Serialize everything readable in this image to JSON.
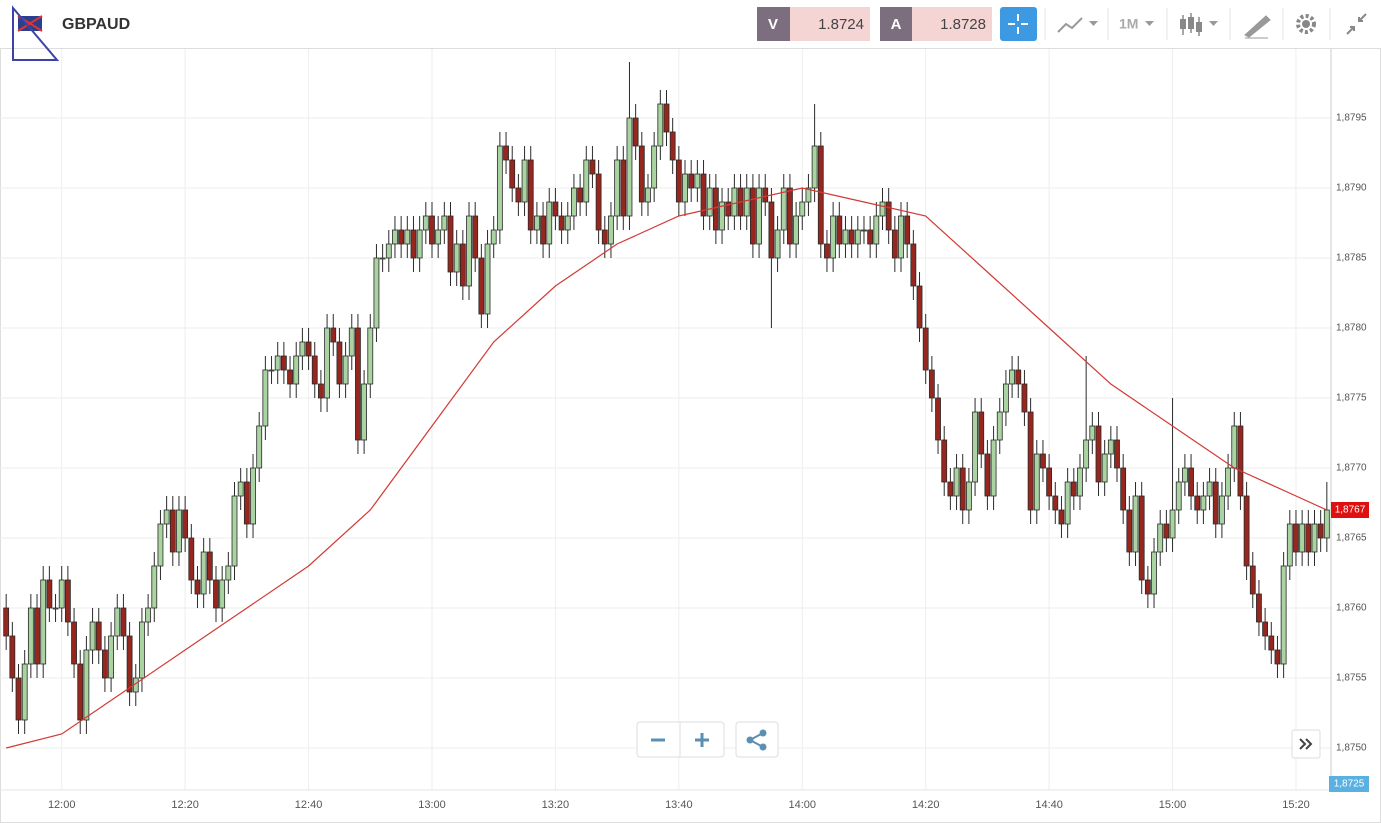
{
  "chart_data": {
    "type": "candlestick",
    "title": "GBPAUD",
    "interval": "1M",
    "bid": {
      "letter": "V",
      "price": "1.8724"
    },
    "ask": {
      "letter": "A",
      "price": "1.8728"
    },
    "up_color": "#a9d3a0",
    "down_color": "#96271f",
    "grid": true,
    "ylim": [
      1.8747,
      1.88
    ],
    "yticks": [
      {
        "value": 1.875,
        "label": "1,8750"
      },
      {
        "value": 1.8755,
        "label": "1,8755"
      },
      {
        "value": 1.876,
        "label": "1,8760"
      },
      {
        "value": 1.8765,
        "label": "1,8765"
      },
      {
        "value": 1.877,
        "label": "1,8770"
      },
      {
        "value": 1.8775,
        "label": "1,8775"
      },
      {
        "value": 1.878,
        "label": "1,8780"
      },
      {
        "value": 1.8785,
        "label": "1,8785"
      },
      {
        "value": 1.879,
        "label": "1,8790"
      },
      {
        "value": 1.8795,
        "label": "1,8795"
      }
    ],
    "xlim": [
      "11:50",
      "15:26"
    ],
    "xticks": [
      "12:00",
      "12:20",
      "12:40",
      "13:00",
      "13:20",
      "13:40",
      "14:00",
      "14:20",
      "14:40",
      "15:00",
      "15:20"
    ],
    "last_price": {
      "value": 1.8767,
      "label": "1,8767"
    },
    "cursor_price": "1,8725",
    "x": [
      "11:51",
      "11:52",
      "11:53",
      "11:54",
      "11:55",
      "11:56",
      "11:57",
      "11:58",
      "11:59",
      "12:00",
      "12:01",
      "12:02",
      "12:03",
      "12:04",
      "12:05",
      "12:06",
      "12:07",
      "12:08",
      "12:09",
      "12:10",
      "12:11",
      "12:12",
      "12:13",
      "12:14",
      "12:15",
      "12:16",
      "12:17",
      "12:18",
      "12:19",
      "12:20",
      "12:21",
      "12:22",
      "12:23",
      "12:24",
      "12:25",
      "12:26",
      "12:27",
      "12:28",
      "12:29",
      "12:30",
      "12:31",
      "12:32",
      "12:33",
      "12:34",
      "12:35",
      "12:36",
      "12:37",
      "12:38",
      "12:39",
      "12:40",
      "12:41",
      "12:42",
      "12:43",
      "12:44",
      "12:45",
      "12:46",
      "12:47",
      "12:48",
      "12:49",
      "12:50",
      "12:51",
      "12:52",
      "12:53",
      "12:54",
      "12:55",
      "12:56",
      "12:57",
      "12:58",
      "12:59",
      "13:00",
      "13:01",
      "13:02",
      "13:03",
      "13:04",
      "13:05",
      "13:06",
      "13:07",
      "13:08",
      "13:09",
      "13:10",
      "13:11",
      "13:12",
      "13:13",
      "13:14",
      "13:15",
      "13:16",
      "13:17",
      "13:18",
      "13:19",
      "13:20",
      "13:21",
      "13:22",
      "13:23",
      "13:24",
      "13:25",
      "13:26",
      "13:27",
      "13:28",
      "13:29",
      "13:30",
      "13:31",
      "13:32",
      "13:33",
      "13:34",
      "13:35",
      "13:36",
      "13:37",
      "13:38",
      "13:39",
      "13:40",
      "13:41",
      "13:42",
      "13:43",
      "13:44",
      "13:45",
      "13:46",
      "13:47",
      "13:48",
      "13:49",
      "13:50",
      "13:51",
      "13:52",
      "13:53",
      "13:54",
      "13:55",
      "13:56",
      "13:57",
      "13:58",
      "13:59",
      "14:00",
      "14:01",
      "14:02",
      "14:03",
      "14:04",
      "14:05",
      "14:06",
      "14:07",
      "14:08",
      "14:09",
      "14:10",
      "14:11",
      "14:12",
      "14:13",
      "14:14",
      "14:15",
      "14:16",
      "14:17",
      "14:18",
      "14:19",
      "14:20",
      "14:21",
      "14:22",
      "14:23",
      "14:24",
      "14:25",
      "14:26",
      "14:27",
      "14:28",
      "14:29",
      "14:30",
      "14:31",
      "14:32",
      "14:33",
      "14:34",
      "14:35",
      "14:36",
      "14:37",
      "14:38",
      "14:39",
      "14:40",
      "14:41",
      "14:42",
      "14:43",
      "14:44",
      "14:45",
      "14:46",
      "14:47",
      "14:48",
      "14:49",
      "14:50",
      "14:51",
      "14:52",
      "14:53",
      "14:54",
      "14:55",
      "14:56",
      "14:57",
      "14:58",
      "14:59",
      "15:00",
      "15:01",
      "15:02",
      "15:03",
      "15:04",
      "15:05",
      "15:06",
      "15:07",
      "15:08",
      "15:09",
      "15:10",
      "15:11",
      "15:12",
      "15:13",
      "15:14",
      "15:15",
      "15:16",
      "15:17",
      "15:18",
      "15:19",
      "15:20",
      "15:21",
      "15:22",
      "15:23",
      "15:24",
      "15:25"
    ],
    "open": [
      1.876,
      1.8758,
      1.8755,
      1.8752,
      1.8756,
      1.876,
      1.8756,
      1.8762,
      1.876,
      1.876,
      1.8762,
      1.8759,
      1.8756,
      1.8752,
      1.8757,
      1.8759,
      1.8757,
      1.8755,
      1.8758,
      1.876,
      1.8758,
      1.8754,
      1.8755,
      1.8759,
      1.876,
      1.8763,
      1.8766,
      1.8767,
      1.8764,
      1.8767,
      1.8765,
      1.8762,
      1.8761,
      1.8764,
      1.8762,
      1.876,
      1.8762,
      1.8763,
      1.8768,
      1.8769,
      1.8766,
      1.877,
      1.8773,
      1.8777,
      1.8777,
      1.8778,
      1.8777,
      1.8776,
      1.8778,
      1.8779,
      1.8778,
      1.8776,
      1.8775,
      1.878,
      1.8779,
      1.8776,
      1.8778,
      1.878,
      1.8772,
      1.8776,
      1.878,
      1.8785,
      1.8785,
      1.8786,
      1.8787,
      1.8786,
      1.8787,
      1.8785,
      1.8787,
      1.8788,
      1.8786,
      1.8787,
      1.8788,
      1.8784,
      1.8786,
      1.8783,
      1.8788,
      1.8785,
      1.8781,
      1.8786,
      1.8787,
      1.8793,
      1.8792,
      1.879,
      1.8789,
      1.8792,
      1.8787,
      1.8788,
      1.8786,
      1.8789,
      1.8788,
      1.8787,
      1.8788,
      1.879,
      1.8789,
      1.8792,
      1.8791,
      1.8787,
      1.8786,
      1.8788,
      1.8792,
      1.8788,
      1.8795,
      1.8793,
      1.8789,
      1.879,
      1.8793,
      1.8796,
      1.8794,
      1.8792,
      1.8789,
      1.8791,
      1.879,
      1.8791,
      1.8788,
      1.879,
      1.8787,
      1.8789,
      1.8788,
      1.879,
      1.8788,
      1.879,
      1.8786,
      1.879,
      1.8789,
      1.8785,
      1.8787,
      1.879,
      1.8786,
      1.8788,
      1.8789,
      1.879,
      1.8793,
      1.8786,
      1.8785,
      1.8788,
      1.8786,
      1.8787,
      1.8786,
      1.8787,
      1.8787,
      1.8786,
      1.8788,
      1.8789,
      1.8787,
      1.8785,
      1.8788,
      1.8786,
      1.8783,
      1.878,
      1.8777,
      1.8775,
      1.8772,
      1.8769,
      1.8768,
      1.877,
      1.8767,
      1.8769,
      1.8774,
      1.8771,
      1.8768,
      1.8772,
      1.8774,
      1.8776,
      1.8777,
      1.8776,
      1.8774,
      1.8767,
      1.8771,
      1.877,
      1.8768,
      1.8767,
      1.8766,
      1.8769,
      1.8768,
      1.877,
      1.8772,
      1.8773,
      1.8769,
      1.8771,
      1.8772,
      1.877,
      1.8767,
      1.8764,
      1.8768,
      1.8762,
      1.8761,
      1.8764,
      1.8766,
      1.8765,
      1.8767,
      1.8769,
      1.877,
      1.8768,
      1.8767,
      1.8768,
      1.8769,
      1.8766,
      1.8768,
      1.877,
      1.8773,
      1.8768,
      1.8763,
      1.8761,
      1.8759,
      1.8758,
      1.8757,
      1.8756,
      1.8763,
      1.8766,
      1.8764,
      1.8766,
      1.8764,
      1.8766,
      1.8765
    ],
    "high": [
      1.8761,
      1.8759,
      1.8756,
      1.8757,
      1.8761,
      1.8761,
      1.8763,
      1.8763,
      1.8761,
      1.8763,
      1.8763,
      1.876,
      1.8757,
      1.8758,
      1.876,
      1.876,
      1.8758,
      1.8759,
      1.8761,
      1.8761,
      1.8759,
      1.8756,
      1.876,
      1.8761,
      1.8764,
      1.8767,
      1.8768,
      1.8768,
      1.8768,
      1.8768,
      1.8766,
      1.8763,
      1.8765,
      1.8765,
      1.8763,
      1.8763,
      1.8764,
      1.8769,
      1.877,
      1.877,
      1.8771,
      1.8774,
      1.8778,
      1.8778,
      1.8779,
      1.8779,
      1.8778,
      1.8779,
      1.878,
      1.878,
      1.8779,
      1.8777,
      1.8781,
      1.8781,
      1.878,
      1.8779,
      1.8781,
      1.8781,
      1.8777,
      1.8781,
      1.8786,
      1.8786,
      1.8787,
      1.8788,
      1.8788,
      1.8788,
      1.8788,
      1.8788,
      1.8789,
      1.8789,
      1.8788,
      1.8789,
      1.8789,
      1.8787,
      1.8787,
      1.8789,
      1.8789,
      1.8786,
      1.8787,
      1.8788,
      1.8794,
      1.8794,
      1.8793,
      1.8791,
      1.8793,
      1.8793,
      1.8789,
      1.8789,
      1.879,
      1.879,
      1.8789,
      1.8789,
      1.8791,
      1.8791,
      1.8793,
      1.8793,
      1.8792,
      1.8788,
      1.8789,
      1.8793,
      1.8793,
      1.8799,
      1.8796,
      1.8794,
      1.8791,
      1.8794,
      1.8797,
      1.8797,
      1.8795,
      1.8793,
      1.8792,
      1.8792,
      1.8792,
      1.8792,
      1.8791,
      1.8791,
      1.879,
      1.879,
      1.8791,
      1.8791,
      1.8791,
      1.8791,
      1.8791,
      1.8791,
      1.879,
      1.8788,
      1.8791,
      1.8791,
      1.8789,
      1.879,
      1.8791,
      1.8796,
      1.8794,
      1.8787,
      1.8789,
      1.8789,
      1.8788,
      1.8788,
      1.8788,
      1.8788,
      1.8788,
      1.8789,
      1.879,
      1.879,
      1.8788,
      1.8789,
      1.8789,
      1.8787,
      1.8784,
      1.8781,
      1.8778,
      1.8776,
      1.8773,
      1.877,
      1.8771,
      1.8771,
      1.877,
      1.8775,
      1.8775,
      1.8772,
      1.8773,
      1.8775,
      1.8777,
      1.8778,
      1.8778,
      1.8777,
      1.8775,
      1.8772,
      1.8772,
      1.8771,
      1.8769,
      1.8768,
      1.877,
      1.877,
      1.8771,
      1.8778,
      1.8774,
      1.8774,
      1.8772,
      1.8773,
      1.8773,
      1.8771,
      1.8768,
      1.8769,
      1.8769,
      1.8763,
      1.8765,
      1.8767,
      1.8767,
      1.8775,
      1.877,
      1.8771,
      1.8771,
      1.8769,
      1.8769,
      1.877,
      1.877,
      1.8769,
      1.8771,
      1.8774,
      1.8774,
      1.8769,
      1.8764,
      1.8762,
      1.876,
      1.8759,
      1.8758,
      1.8764,
      1.8767,
      1.8767,
      1.8767,
      1.8767,
      1.8767,
      1.8767,
      1.8769
    ],
    "low": [
      1.8757,
      1.8754,
      1.8751,
      1.8751,
      1.8755,
      1.8755,
      1.8755,
      1.8759,
      1.8759,
      1.8759,
      1.8758,
      1.8755,
      1.8751,
      1.8751,
      1.8756,
      1.8756,
      1.8754,
      1.8754,
      1.8757,
      1.8757,
      1.8753,
      1.8753,
      1.8754,
      1.8758,
      1.8759,
      1.8762,
      1.8765,
      1.8763,
      1.8763,
      1.8764,
      1.8761,
      1.876,
      1.876,
      1.8761,
      1.8759,
      1.8759,
      1.8761,
      1.8762,
      1.8767,
      1.8765,
      1.8765,
      1.8769,
      1.8772,
      1.8776,
      1.8776,
      1.8776,
      1.8775,
      1.8775,
      1.8777,
      1.8777,
      1.8775,
      1.8774,
      1.8774,
      1.8778,
      1.8775,
      1.8775,
      1.8777,
      1.8771,
      1.8771,
      1.8775,
      1.8779,
      1.8784,
      1.8784,
      1.8785,
      1.8785,
      1.8785,
      1.8784,
      1.8784,
      1.8786,
      1.8785,
      1.8785,
      1.8786,
      1.8783,
      1.8783,
      1.8782,
      1.8782,
      1.8784,
      1.878,
      1.878,
      1.8785,
      1.8786,
      1.8791,
      1.8789,
      1.8788,
      1.8788,
      1.8786,
      1.8786,
      1.8785,
      1.8785,
      1.8787,
      1.8786,
      1.8786,
      1.8787,
      1.8788,
      1.8788,
      1.879,
      1.8786,
      1.8785,
      1.8785,
      1.8787,
      1.8787,
      1.8787,
      1.8792,
      1.8788,
      1.8788,
      1.8789,
      1.8792,
      1.8793,
      1.8791,
      1.8788,
      1.8788,
      1.8789,
      1.8789,
      1.8787,
      1.8787,
      1.8786,
      1.8786,
      1.8787,
      1.8787,
      1.8787,
      1.8787,
      1.8785,
      1.8785,
      1.8788,
      1.878,
      1.8784,
      1.8786,
      1.8785,
      1.8785,
      1.8787,
      1.8788,
      1.8789,
      1.8785,
      1.8784,
      1.8784,
      1.8785,
      1.8785,
      1.8785,
      1.8785,
      1.8786,
      1.8785,
      1.8785,
      1.8787,
      1.8786,
      1.8784,
      1.8784,
      1.8785,
      1.8782,
      1.8779,
      1.8776,
      1.8774,
      1.8771,
      1.8768,
      1.8767,
      1.8767,
      1.8766,
      1.8766,
      1.8768,
      1.877,
      1.8767,
      1.8767,
      1.8771,
      1.8773,
      1.8775,
      1.8775,
      1.8773,
      1.8766,
      1.8766,
      1.8769,
      1.8767,
      1.8766,
      1.8765,
      1.8765,
      1.8767,
      1.8767,
      1.8769,
      1.8771,
      1.8768,
      1.8768,
      1.877,
      1.8769,
      1.8766,
      1.8763,
      1.8763,
      1.8761,
      1.876,
      1.876,
      1.8763,
      1.8764,
      1.8764,
      1.8766,
      1.8768,
      1.8767,
      1.8766,
      1.8766,
      1.8767,
      1.8765,
      1.8765,
      1.8767,
      1.8769,
      1.8767,
      1.8762,
      1.876,
      1.8758,
      1.8757,
      1.8756,
      1.8755,
      1.8755,
      1.8762,
      1.8763,
      1.8763,
      1.8763,
      1.8763,
      1.8764,
      1.8764
    ],
    "close": [
      1.8758,
      1.8755,
      1.8752,
      1.8756,
      1.876,
      1.8756,
      1.8762,
      1.876,
      1.876,
      1.8762,
      1.8759,
      1.8756,
      1.8752,
      1.8757,
      1.8759,
      1.8757,
      1.8755,
      1.8758,
      1.876,
      1.8758,
      1.8754,
      1.8755,
      1.8759,
      1.876,
      1.8763,
      1.8766,
      1.8767,
      1.8764,
      1.8767,
      1.8765,
      1.8762,
      1.8761,
      1.8764,
      1.8762,
      1.876,
      1.8762,
      1.8763,
      1.8768,
      1.8769,
      1.8766,
      1.877,
      1.8773,
      1.8777,
      1.8777,
      1.8778,
      1.8777,
      1.8776,
      1.8778,
      1.8779,
      1.8778,
      1.8776,
      1.8775,
      1.878,
      1.8779,
      1.8776,
      1.8778,
      1.878,
      1.8772,
      1.8776,
      1.878,
      1.8785,
      1.8785,
      1.8786,
      1.8787,
      1.8786,
      1.8787,
      1.8785,
      1.8787,
      1.8788,
      1.8786,
      1.8787,
      1.8788,
      1.8784,
      1.8786,
      1.8783,
      1.8788,
      1.8785,
      1.8781,
      1.8786,
      1.8787,
      1.8793,
      1.8792,
      1.879,
      1.8789,
      1.8792,
      1.8787,
      1.8788,
      1.8786,
      1.8789,
      1.8788,
      1.8787,
      1.8788,
      1.879,
      1.8789,
      1.8792,
      1.8791,
      1.8787,
      1.8786,
      1.8788,
      1.8792,
      1.8788,
      1.8795,
      1.8793,
      1.8789,
      1.879,
      1.8793,
      1.8796,
      1.8794,
      1.8792,
      1.8789,
      1.8791,
      1.879,
      1.8791,
      1.8788,
      1.879,
      1.8787,
      1.8789,
      1.8788,
      1.879,
      1.8788,
      1.879,
      1.8786,
      1.879,
      1.8789,
      1.8785,
      1.8787,
      1.879,
      1.8786,
      1.8788,
      1.8789,
      1.879,
      1.8793,
      1.8786,
      1.8785,
      1.8788,
      1.8786,
      1.8787,
      1.8786,
      1.8787,
      1.8787,
      1.8786,
      1.8788,
      1.8789,
      1.8787,
      1.8785,
      1.8788,
      1.8786,
      1.8783,
      1.878,
      1.8777,
      1.8775,
      1.8772,
      1.8769,
      1.8768,
      1.877,
      1.8767,
      1.8769,
      1.8774,
      1.8771,
      1.8768,
      1.8772,
      1.8774,
      1.8776,
      1.8777,
      1.8776,
      1.8774,
      1.8767,
      1.8771,
      1.877,
      1.8768,
      1.8767,
      1.8766,
      1.8769,
      1.8768,
      1.877,
      1.8772,
      1.8773,
      1.8769,
      1.8771,
      1.8772,
      1.877,
      1.8767,
      1.8764,
      1.8768,
      1.8762,
      1.8761,
      1.8764,
      1.8766,
      1.8765,
      1.8767,
      1.8769,
      1.877,
      1.8768,
      1.8767,
      1.8768,
      1.8769,
      1.8766,
      1.8768,
      1.877,
      1.8773,
      1.8768,
      1.8763,
      1.8761,
      1.8759,
      1.8758,
      1.8757,
      1.8756,
      1.8763,
      1.8766,
      1.8764,
      1.8766,
      1.8764,
      1.8766,
      1.8765,
      1.8767
    ],
    "ma": {
      "color": "#d23a35",
      "x": [
        "11:51",
        "12:00",
        "12:10",
        "12:20",
        "12:30",
        "12:40",
        "12:50",
        "13:00",
        "13:10",
        "13:20",
        "13:30",
        "13:40",
        "13:50",
        "14:00",
        "14:10",
        "14:20",
        "14:30",
        "14:40",
        "14:50",
        "15:00",
        "15:10",
        "15:20",
        "15:25"
      ],
      "values": [
        1.875,
        1.8751,
        1.8754,
        1.8757,
        1.876,
        1.8763,
        1.8767,
        1.8773,
        1.8779,
        1.8783,
        1.8786,
        1.8788,
        1.8789,
        1.879,
        1.8789,
        1.8788,
        1.8784,
        1.878,
        1.8776,
        1.8773,
        1.877,
        1.8768,
        1.8767
      ]
    }
  }
}
